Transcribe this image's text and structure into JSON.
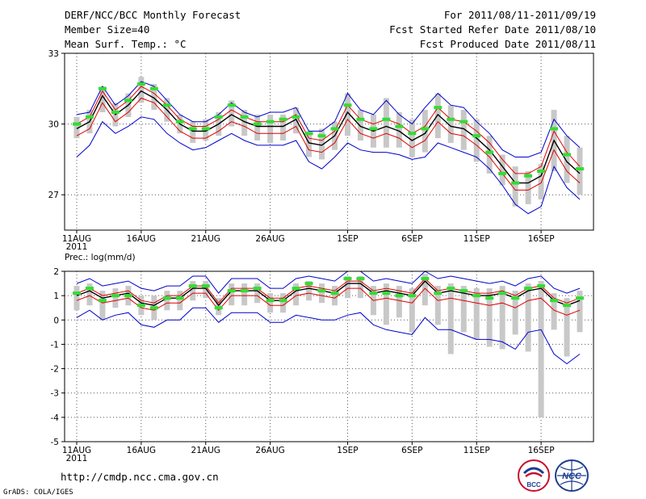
{
  "header": {
    "title": "DERF/NCC/BCC Monthly Forecast",
    "member_size": "Member Size=40",
    "variable": "Mean Surf. Temp.: °C",
    "period": "For 2011/08/11-2011/09/19",
    "start_date": "Fcst Started Refer Date 2011/08/10",
    "produced_date": "Fcst Produced Date 2011/08/11"
  },
  "footer": {
    "url": "http://cmdp.ncc.cma.gov.cn",
    "credit": "GrADS: COLA/IGES",
    "logo_left_text": "BCC",
    "logo_right_text": "NCC"
  },
  "colors": {
    "ensemble_mean": "#000000",
    "spread_band": "#e00000",
    "min_max": "#0000cc",
    "member_range_bar": "#c8c8c8",
    "observation_marker": "#33dd33",
    "grid": "#555555"
  },
  "chart_data": [
    {
      "type": "line",
      "title": "Mean Surf. Temp.: °C",
      "ylabel": "°C",
      "ylim": [
        25.5,
        33
      ],
      "yticks": [
        27,
        30,
        33
      ],
      "x_tick_labels": [
        "11AUG",
        "16AUG",
        "21AUG",
        "26AUG",
        "1SEP",
        "6SEP",
        "11SEP",
        "16SEP"
      ],
      "x_tick_day_index": [
        1,
        6,
        11,
        16,
        22,
        27,
        32,
        37
      ],
      "year_label": "2011",
      "days": 40,
      "series": [
        {
          "name": "ensemble mean",
          "values": [
            29.8,
            30.1,
            31.2,
            30.4,
            30.8,
            31.4,
            31.1,
            30.6,
            30.0,
            29.7,
            29.7,
            30.0,
            30.4,
            30.1,
            29.9,
            29.9,
            29.9,
            30.2,
            29.2,
            29.1,
            29.5,
            30.5,
            29.9,
            29.7,
            29.9,
            29.7,
            29.3,
            29.6,
            30.4,
            29.9,
            29.8,
            29.4,
            28.9,
            28.2,
            27.5,
            27.5,
            27.8,
            29.3,
            28.4,
            27.9
          ]
        },
        {
          "name": "upper spread",
          "values": [
            30.0,
            30.3,
            31.4,
            30.6,
            31.0,
            31.6,
            31.3,
            30.8,
            30.2,
            29.9,
            29.9,
            30.2,
            30.6,
            30.3,
            30.1,
            30.1,
            30.1,
            30.4,
            29.4,
            29.3,
            29.7,
            30.8,
            30.2,
            30.0,
            30.2,
            30.0,
            29.6,
            29.9,
            30.7,
            30.2,
            30.1,
            29.7,
            29.2,
            28.5,
            27.9,
            27.9,
            28.2,
            29.7,
            28.8,
            28.2
          ]
        },
        {
          "name": "lower spread",
          "values": [
            29.5,
            29.8,
            30.9,
            30.1,
            30.5,
            31.1,
            30.9,
            30.3,
            29.7,
            29.4,
            29.4,
            29.7,
            30.1,
            29.9,
            29.6,
            29.6,
            29.6,
            29.9,
            28.9,
            28.8,
            29.2,
            30.2,
            29.6,
            29.4,
            29.6,
            29.4,
            29.0,
            29.3,
            30.1,
            29.6,
            29.5,
            29.1,
            28.6,
            27.9,
            27.2,
            27.2,
            27.5,
            28.9,
            28.0,
            27.5
          ]
        },
        {
          "name": "maximum",
          "values": [
            30.4,
            30.5,
            31.6,
            30.8,
            31.2,
            31.8,
            31.6,
            31.0,
            30.4,
            30.1,
            30.1,
            30.4,
            30.9,
            30.5,
            30.3,
            30.5,
            30.5,
            30.7,
            29.7,
            29.7,
            30.1,
            31.3,
            30.6,
            30.4,
            31.0,
            30.4,
            30.0,
            30.7,
            31.3,
            30.8,
            30.7,
            30.1,
            29.6,
            28.9,
            28.6,
            28.6,
            28.8,
            30.2,
            29.5,
            29.0
          ]
        },
        {
          "name": "minimum",
          "values": [
            28.6,
            29.1,
            30.1,
            29.6,
            29.9,
            30.3,
            30.2,
            29.6,
            29.2,
            28.9,
            29.0,
            29.3,
            29.6,
            29.3,
            29.1,
            29.1,
            29.1,
            29.3,
            28.4,
            28.1,
            28.6,
            29.2,
            28.9,
            28.8,
            28.8,
            28.7,
            28.5,
            28.6,
            29.2,
            29.0,
            28.8,
            28.6,
            28.1,
            27.4,
            26.6,
            26.2,
            26.5,
            28.2,
            27.3,
            26.8
          ]
        },
        {
          "name": "observed",
          "values": [
            30.0,
            30.3,
            31.5,
            30.5,
            31.0,
            31.7,
            31.5,
            30.8,
            30.1,
            29.8,
            29.8,
            30.3,
            30.8,
            30.3,
            30.0,
            30.1,
            30.2,
            30.3,
            29.6,
            29.5,
            29.8,
            30.8,
            30.2,
            29.8,
            30.2,
            29.9,
            29.6,
            29.8,
            30.7,
            30.2,
            30.1,
            29.5,
            28.8,
            27.9,
            27.5,
            27.8,
            28.0,
            29.8,
            28.7,
            28.1
          ]
        },
        {
          "name": "member range top",
          "values": [
            30.3,
            30.6,
            31.6,
            30.9,
            31.3,
            32.0,
            31.7,
            31.1,
            30.4,
            30.1,
            30.2,
            30.5,
            31.0,
            30.6,
            30.4,
            30.4,
            30.4,
            30.7,
            29.7,
            29.8,
            30.1,
            31.3,
            30.6,
            30.4,
            31.1,
            30.5,
            30.2,
            30.6,
            31.3,
            30.8,
            30.6,
            30.2,
            29.5,
            28.7,
            28.2,
            28.0,
            28.3,
            30.6,
            29.5,
            29.0
          ]
        },
        {
          "name": "member range bottom",
          "values": [
            29.4,
            29.6,
            30.5,
            29.9,
            30.3,
            30.9,
            30.6,
            30.1,
            29.6,
            29.2,
            29.3,
            29.5,
            29.9,
            29.5,
            29.3,
            29.2,
            29.3,
            29.6,
            28.6,
            28.5,
            28.9,
            29.5,
            29.3,
            29.0,
            29.0,
            29.0,
            28.6,
            28.8,
            29.4,
            29.2,
            28.9,
            28.4,
            27.9,
            27.4,
            26.5,
            26.6,
            26.8,
            28.0,
            27.5,
            27.0
          ]
        }
      ]
    },
    {
      "type": "line",
      "title": "Prec.: log(mm/d)",
      "ylabel": "log(mm/d)",
      "ylim": [
        -5,
        2
      ],
      "yticks": [
        -5,
        -4,
        -3,
        -2,
        -1,
        0,
        1,
        2
      ],
      "x_tick_labels": [
        "11AUG",
        "16AUG",
        "21AUG",
        "26AUG",
        "1SEP",
        "6SEP",
        "11SEP",
        "16SEP"
      ],
      "x_tick_day_index": [
        1,
        6,
        11,
        16,
        22,
        27,
        32,
        37
      ],
      "year_label": "2011",
      "days": 40,
      "series": [
        {
          "name": "ensemble mean",
          "values": [
            1.0,
            1.2,
            0.9,
            1.0,
            1.1,
            0.7,
            0.6,
            0.9,
            0.9,
            1.3,
            1.3,
            0.6,
            1.2,
            1.2,
            1.2,
            0.8,
            0.8,
            1.2,
            1.3,
            1.2,
            1.1,
            1.5,
            1.5,
            1.1,
            1.2,
            1.1,
            1.0,
            1.6,
            1.1,
            1.2,
            1.1,
            1.0,
            1.0,
            1.1,
            0.9,
            1.2,
            1.3,
            0.8,
            0.6,
            0.8
          ]
        },
        {
          "name": "upper spread",
          "values": [
            1.1,
            1.3,
            1.0,
            1.1,
            1.2,
            0.8,
            0.7,
            1.0,
            1.0,
            1.4,
            1.4,
            0.7,
            1.3,
            1.3,
            1.3,
            0.9,
            0.9,
            1.3,
            1.4,
            1.3,
            1.2,
            1.6,
            1.6,
            1.2,
            1.3,
            1.2,
            1.1,
            1.7,
            1.2,
            1.3,
            1.2,
            1.1,
            1.1,
            1.2,
            1.0,
            1.3,
            1.4,
            0.9,
            0.7,
            0.9
          ]
        },
        {
          "name": "lower spread",
          "values": [
            0.8,
            1.0,
            0.7,
            0.8,
            0.9,
            0.5,
            0.4,
            0.7,
            0.7,
            1.1,
            1.1,
            0.4,
            1.0,
            1.0,
            1.0,
            0.6,
            0.6,
            1.0,
            1.1,
            1.0,
            0.9,
            1.3,
            1.3,
            0.8,
            0.9,
            0.8,
            0.7,
            1.3,
            0.8,
            0.9,
            0.8,
            0.7,
            0.6,
            0.7,
            0.5,
            0.8,
            0.9,
            0.4,
            0.2,
            0.4
          ]
        },
        {
          "name": "maximum",
          "values": [
            1.5,
            1.7,
            1.4,
            1.5,
            1.6,
            1.3,
            1.2,
            1.4,
            1.4,
            1.8,
            1.8,
            1.1,
            1.7,
            1.7,
            1.7,
            1.3,
            1.3,
            1.7,
            1.8,
            1.7,
            1.6,
            2.0,
            2.0,
            1.6,
            1.7,
            1.6,
            1.5,
            2.0,
            1.7,
            1.8,
            1.7,
            1.6,
            1.5,
            1.6,
            1.4,
            1.7,
            1.8,
            1.3,
            1.1,
            1.3
          ]
        },
        {
          "name": "minimum",
          "values": [
            0.1,
            0.4,
            0.0,
            0.2,
            0.3,
            -0.2,
            -0.3,
            0.0,
            0.0,
            0.5,
            0.5,
            -0.1,
            0.3,
            0.3,
            0.3,
            -0.1,
            -0.1,
            0.2,
            0.1,
            0.0,
            0.0,
            0.2,
            0.3,
            -0.2,
            -0.4,
            -0.5,
            -0.6,
            0.1,
            -0.4,
            -0.4,
            -0.6,
            -0.8,
            -0.8,
            -0.9,
            -1.2,
            -0.5,
            -0.4,
            -1.4,
            -1.8,
            -1.4
          ]
        },
        {
          "name": "observed",
          "values": [
            1.1,
            1.3,
            0.8,
            1.0,
            1.0,
            0.6,
            0.5,
            0.9,
            0.9,
            1.4,
            1.4,
            0.5,
            1.2,
            1.2,
            1.3,
            0.8,
            0.8,
            1.3,
            1.5,
            1.2,
            1.1,
            1.7,
            1.7,
            1.1,
            1.1,
            1.0,
            1.0,
            1.7,
            1.1,
            1.3,
            1.2,
            1.0,
            0.9,
            1.1,
            0.9,
            1.3,
            1.4,
            0.8,
            0.6,
            0.9
          ]
        },
        {
          "name": "member range top",
          "values": [
            1.4,
            1.5,
            1.2,
            1.3,
            1.4,
            1.0,
            1.0,
            1.2,
            1.2,
            1.6,
            1.6,
            0.9,
            1.5,
            1.5,
            1.5,
            1.1,
            1.1,
            1.5,
            1.6,
            1.5,
            1.4,
            1.8,
            1.8,
            1.4,
            1.5,
            1.4,
            1.3,
            1.9,
            1.4,
            1.5,
            1.4,
            1.3,
            1.3,
            1.4,
            1.2,
            1.5,
            1.6,
            1.1,
            0.9,
            1.2
          ]
        },
        {
          "name": "member range bottom",
          "values": [
            0.4,
            0.6,
            0.0,
            0.5,
            0.6,
            0.2,
            0.0,
            0.4,
            0.4,
            0.8,
            0.9,
            0.2,
            0.6,
            0.6,
            0.7,
            0.3,
            0.3,
            0.6,
            0.8,
            0.7,
            0.6,
            0.9,
            0.9,
            0.2,
            -0.2,
            0.1,
            -0.5,
            0.6,
            -0.2,
            -1.4,
            -0.5,
            -0.8,
            -1.1,
            -1.2,
            -0.6,
            -1.3,
            -4.0,
            -0.4,
            -1.5,
            -0.5
          ]
        }
      ]
    }
  ]
}
